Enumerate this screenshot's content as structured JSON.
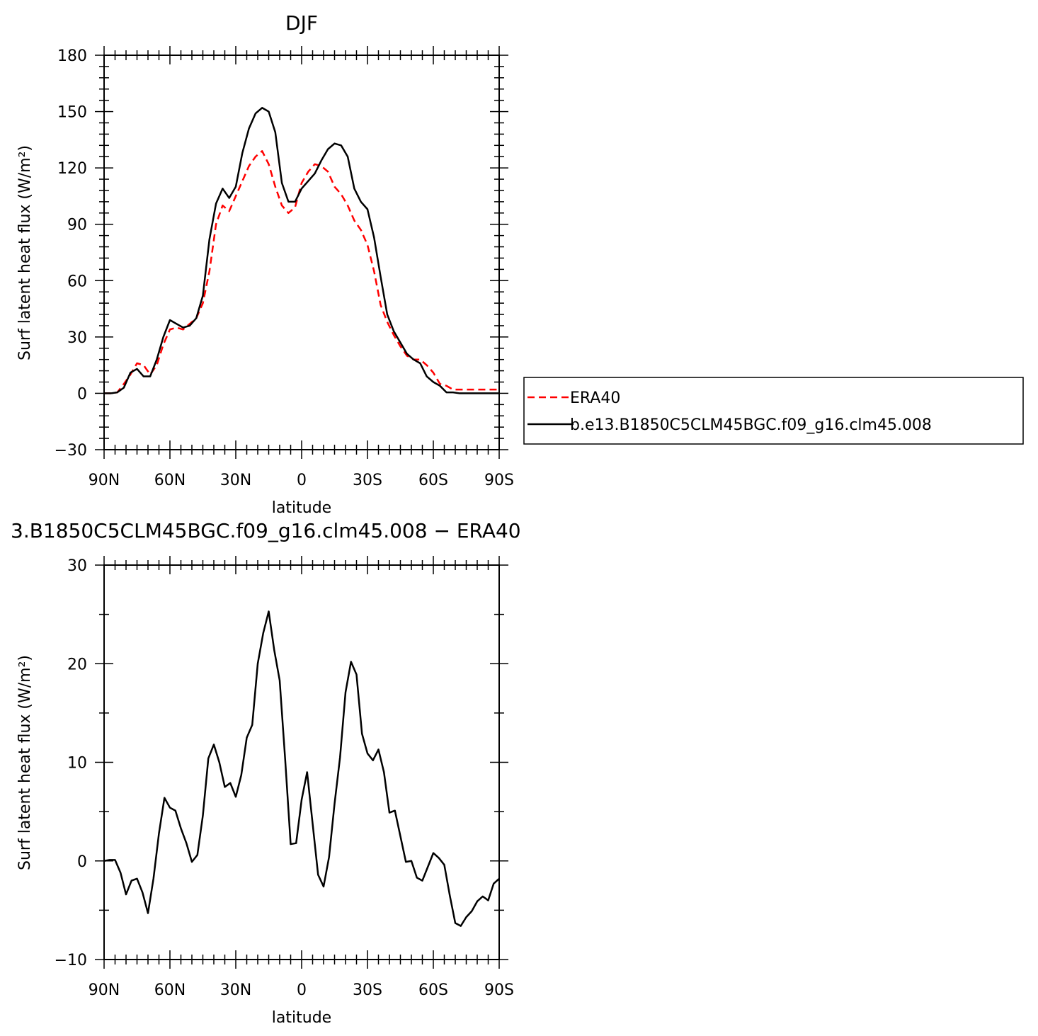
{
  "colors": {
    "era40": "#ff0000",
    "model": "#000000",
    "frame": "#000000",
    "background": "#ffffff"
  },
  "chart_data": [
    {
      "type": "line",
      "title": "DJF",
      "xlabel": "latitude",
      "ylabel": "Surf latent heat flux (W/m²)",
      "xlim": [
        90,
        -90
      ],
      "ylim": [
        -30,
        180
      ],
      "x_tick_values": [
        90,
        60,
        30,
        0,
        -30,
        -60,
        -90
      ],
      "x_tick_labels": [
        "90N",
        "60N",
        "30N",
        "0",
        "30S",
        "60S",
        "90S"
      ],
      "y_tick_values": [
        -30,
        0,
        30,
        60,
        90,
        120,
        150,
        180
      ],
      "y_tick_labels": [
        "−30",
        "0",
        "30",
        "60",
        "90",
        "120",
        "150",
        "180"
      ],
      "legend": {
        "placement": "right",
        "entries": [
          "ERA40",
          "b.e13.B1850C5CLM45BGC.f09_g16.clm45.008"
        ]
      },
      "x": [
        90,
        87,
        84,
        81,
        78,
        75,
        72,
        69,
        66,
        63,
        60,
        57,
        54,
        51,
        48,
        45,
        42,
        39,
        36,
        33,
        30,
        27,
        24,
        21,
        18,
        15,
        12,
        9,
        6,
        3,
        0,
        -3,
        -6,
        -9,
        -12,
        -15,
        -18,
        -21,
        -24,
        -27,
        -30,
        -33,
        -36,
        -39,
        -42,
        -45,
        -48,
        -51,
        -54,
        -57,
        -60,
        -63,
        -66,
        -69,
        -72,
        -75,
        -78,
        -81,
        -84,
        -87,
        -90
      ],
      "series": [
        {
          "name": "ERA40",
          "style": "dashed",
          "values": [
            0,
            0,
            0.5,
            5,
            10,
            16,
            15,
            10,
            15,
            26,
            34,
            35,
            34,
            37,
            40,
            48,
            65,
            90,
            100,
            97,
            105,
            113,
            121,
            126,
            129,
            122,
            110,
            100,
            96,
            99,
            112,
            118,
            122,
            121,
            118,
            110,
            106,
            100,
            92,
            87,
            79,
            65,
            47,
            38,
            31,
            25,
            20,
            18,
            18,
            15,
            11,
            5,
            4,
            2,
            2,
            2,
            2,
            2,
            2,
            2,
            2
          ]
        },
        {
          "name": "b.e13.B1850C5CLM45BGC.f09_g16.clm45.008",
          "style": "solid",
          "values": [
            0,
            0,
            0.5,
            3,
            11,
            13,
            9,
            9,
            18,
            30,
            39,
            37,
            35,
            36,
            40,
            52,
            82,
            101,
            109,
            104,
            110,
            128,
            141,
            149,
            152,
            150,
            139,
            112,
            102,
            102,
            109,
            113,
            117,
            124,
            130,
            133,
            132,
            126,
            109,
            102,
            98,
            83,
            62,
            42,
            33,
            27,
            21,
            18,
            16,
            9,
            6,
            4,
            0.5,
            0.5,
            0,
            0,
            0,
            0,
            0,
            0,
            0
          ]
        }
      ]
    },
    {
      "type": "line",
      "title": "3.B1850C5CLM45BGC.f09_g16.clm45.008 − ERA40",
      "xlabel": "latitude",
      "ylabel": "Surf latent heat flux (W/m²)",
      "xlim": [
        90,
        -90
      ],
      "ylim": [
        -10,
        30
      ],
      "x_tick_values": [
        90,
        60,
        30,
        0,
        -30,
        -60,
        -90
      ],
      "x_tick_labels": [
        "90N",
        "60N",
        "30N",
        "0",
        "30S",
        "60S",
        "90S"
      ],
      "y_tick_values": [
        -10,
        0,
        10,
        20,
        30
      ],
      "y_tick_labels": [
        "−10",
        "0",
        "10",
        "20",
        "30"
      ],
      "x": [
        90,
        87.5,
        85,
        82.5,
        80,
        77.5,
        75,
        72.5,
        70,
        67.5,
        65,
        62.5,
        60,
        57.5,
        55,
        52.5,
        50,
        47.5,
        45,
        42.5,
        40,
        37.5,
        35,
        32.5,
        30,
        27.5,
        25,
        22.5,
        20,
        17.5,
        15,
        12.5,
        10,
        7.5,
        5,
        2.5,
        0,
        -2.5,
        -5,
        -7.5,
        -10,
        -12.5,
        -15,
        -17.5,
        -20,
        -22.5,
        -25,
        -27.5,
        -30,
        -32.5,
        -35,
        -37.5,
        -40,
        -42.5,
        -45,
        -47.5,
        -50,
        -52.5,
        -55,
        -57.5,
        -60,
        -62.5,
        -65,
        -67.5,
        -70,
        -72.5,
        -75,
        -77.5,
        -80,
        -82.5,
        -85,
        -87.5,
        -90
      ],
      "series": [
        {
          "name": "",
          "style": "solid",
          "values": [
            0,
            0.1,
            0.1,
            -1.2,
            -3.4,
            -2,
            -1.8,
            -3.2,
            -5.3,
            -1.8,
            2.8,
            6.4,
            5.4,
            5.1,
            3.3,
            1.8,
            -0.1,
            0.6,
            4.6,
            10.4,
            11.8,
            10.0,
            7.5,
            7.9,
            6.5,
            8.7,
            12.5,
            13.8,
            20.0,
            23.1,
            25.3,
            21.4,
            18.3,
            10.3,
            1.7,
            1.8,
            6.2,
            9.0,
            3.8,
            -1.4,
            -2.6,
            0.4,
            5.8,
            10.5,
            17.1,
            20.2,
            18.9,
            12.9,
            10.9,
            10.2,
            11.3,
            9.0,
            4.9,
            5.1,
            2.5,
            -0.1,
            0,
            -1.7,
            -2.0,
            -0.6,
            0.8,
            0.3,
            -0.4,
            -3.5,
            -6.3,
            -6.6,
            -5.7,
            -5.1,
            -4.1,
            -3.6,
            -4.0,
            -2.3,
            -1.8
          ]
        }
      ]
    }
  ]
}
